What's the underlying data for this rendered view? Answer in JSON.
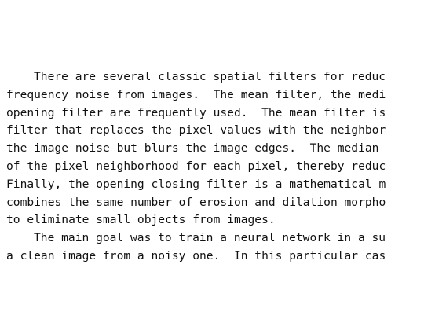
{
  "paragraphs": [
    {
      "lines": [
        "There are several classic spatial filters for reduc",
        "frequency noise from images.  The mean filter, the medi",
        "opening filter are frequently used.  The mean filter is",
        "filter that replaces the pixel values with the neighbor",
        "the image noise but blurs the image edges.  The median",
        "of the pixel neighborhood for each pixel, thereby reduc",
        "Finally, the opening closing filter is a mathematical m",
        "combines the same number of erosion and dilation morpho",
        "to eliminate small objects from images."
      ]
    },
    {
      "lines": [
        "The main goal was to train a neural network in a su",
        "a clean image from a noisy one.  In this particular cas"
      ]
    }
  ]
}
